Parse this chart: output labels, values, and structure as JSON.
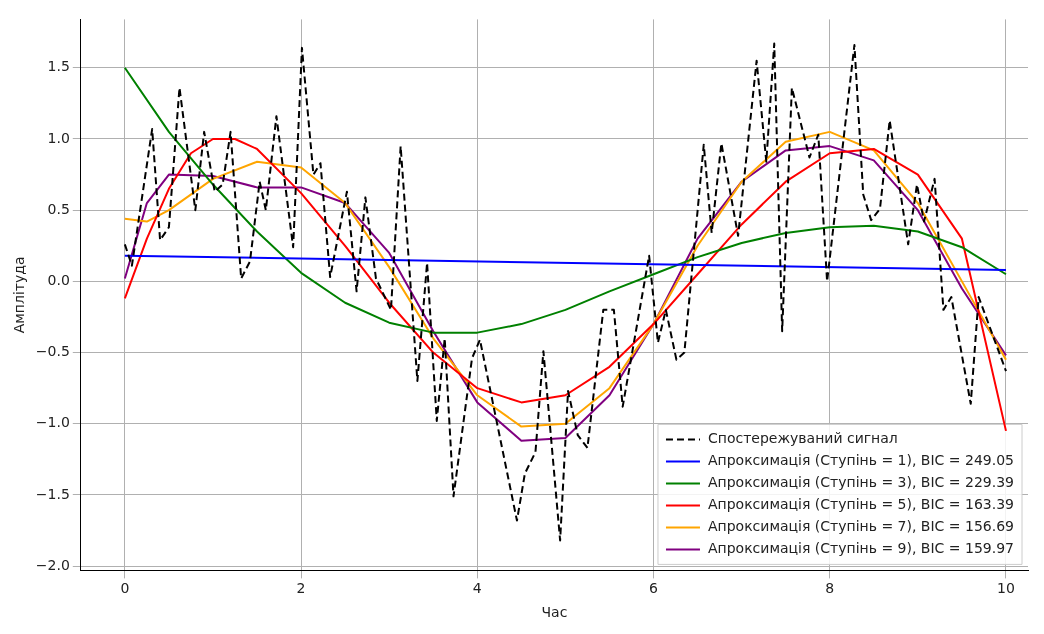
{
  "chart_data": {
    "type": "line",
    "xlabel": "Час",
    "ylabel": "Амплітуда",
    "xlim": [
      -0.5,
      10.25
    ],
    "ylim": [
      -2.03,
      1.84
    ],
    "xticks": [
      0,
      2,
      4,
      6,
      8,
      10
    ],
    "yticks": [
      {
        "value": -2,
        "label": "−2.0"
      },
      {
        "value": -1.5,
        "label": "−1.5"
      },
      {
        "value": -1,
        "label": "−1.0"
      },
      {
        "value": -0.5,
        "label": "−0.5"
      },
      {
        "value": 0,
        "label": "0.0"
      },
      {
        "value": 0.5,
        "label": "0.5"
      },
      {
        "value": 1,
        "label": "1.0"
      },
      {
        "value": 1.5,
        "label": "1.5"
      }
    ],
    "grid": true,
    "legend": "bottom right",
    "marker": "none",
    "series": [
      {
        "name": "Спостережуваний сигнал",
        "color": "#000000",
        "line_style": "dashed",
        "x": [
          0,
          0.08,
          0.31,
          0.4,
          0.5,
          0.62,
          0.8,
          0.9,
          1.02,
          1.11,
          1.2,
          1.32,
          1.42,
          1.53,
          1.6,
          1.72,
          1.91,
          2.01,
          2.14,
          2.22,
          2.33,
          2.52,
          2.63,
          2.73,
          2.85,
          3.02,
          3.13,
          3.32,
          3.43,
          3.54,
          3.63,
          3.73,
          3.94,
          4.03,
          4.45,
          4.54,
          4.66,
          4.75,
          4.94,
          5.03,
          5.14,
          5.25,
          5.43,
          5.55,
          5.65,
          5.95,
          6.05,
          6.14,
          6.26,
          6.35,
          6.57,
          6.66,
          6.77,
          6.96,
          7.17,
          7.28,
          7.37,
          7.46,
          7.57,
          7.77,
          7.87,
          7.97,
          8.28,
          8.38,
          8.47,
          8.57,
          8.68,
          8.89,
          8.99,
          9.07,
          9.19,
          9.29,
          9.38,
          9.6,
          9.69,
          10
        ],
        "values": [
          0.26,
          0.11,
          1.07,
          0.29,
          0.38,
          1.36,
          0.5,
          1.05,
          0.63,
          0.68,
          1.05,
          0.02,
          0.14,
          0.7,
          0.5,
          1.16,
          0.24,
          1.64,
          0.75,
          0.83,
          0.03,
          0.63,
          -0.07,
          0.59,
          0.02,
          -0.2,
          0.95,
          -0.7,
          0.13,
          -0.98,
          -0.4,
          -1.51,
          -0.54,
          -0.41,
          -1.68,
          -1.35,
          -1.2,
          -0.49,
          -1.82,
          -0.77,
          -1.08,
          -1.17,
          -0.2,
          -0.2,
          -0.88,
          0.18,
          -0.43,
          -0.2,
          -0.55,
          -0.5,
          0.96,
          0.34,
          0.97,
          0.32,
          1.55,
          0.84,
          1.67,
          -0.35,
          1.36,
          0.87,
          1.03,
          0,
          1.66,
          0.61,
          0.43,
          0.51,
          1.13,
          0.26,
          0.68,
          0.42,
          0.72,
          -0.2,
          -0.11,
          -0.86,
          -0.11,
          -0.63
        ]
      },
      {
        "name": "Апроксимація (Ступінь = 1), BIC = 249.05",
        "color": "#0000ff",
        "line_style": "solid",
        "x": [
          0,
          10
        ],
        "values": [
          0.18,
          0.08
        ]
      },
      {
        "name": "Апроксимація (Ступінь = 3), BIC = 229.39",
        "color": "#008000",
        "line_style": "solid",
        "x": [
          0,
          0.5,
          1,
          1.5,
          2,
          2.5,
          3,
          3.5,
          4,
          4.5,
          5,
          5.5,
          6,
          6.5,
          7,
          7.5,
          8,
          8.5,
          9,
          9.5,
          10
        ],
        "values": [
          1.5,
          1.05,
          0.68,
          0.35,
          0.06,
          -0.15,
          -0.29,
          -0.36,
          -0.36,
          -0.3,
          -0.2,
          -0.07,
          0.05,
          0.17,
          0.27,
          0.34,
          0.38,
          0.39,
          0.35,
          0.24,
          0.05
        ]
      },
      {
        "name": "Апроксимація (Ступінь = 5), BIC = 163.39",
        "color": "#ff0000",
        "line_style": "solid",
        "x": [
          0,
          0.25,
          0.5,
          0.75,
          1,
          1.25,
          1.5,
          2,
          2.5,
          3,
          3.5,
          4,
          4.5,
          5,
          5.5,
          6,
          6.5,
          7,
          7.5,
          8,
          8.5,
          9,
          9.5,
          10
        ],
        "values": [
          -0.12,
          0.3,
          0.65,
          0.9,
          1,
          1,
          0.93,
          0.62,
          0.25,
          -0.15,
          -0.5,
          -0.75,
          -0.85,
          -0.8,
          -0.6,
          -0.3,
          0.05,
          0.4,
          0.7,
          0.9,
          0.93,
          0.75,
          0.3,
          -1.05
        ]
      },
      {
        "name": "Апроксимація (Ступінь = 7), BIC = 156.69",
        "color": "#ffa500",
        "line_style": "solid",
        "x": [
          0,
          0.25,
          0.5,
          1,
          1.5,
          2,
          2.5,
          3,
          3.5,
          4,
          4.5,
          5,
          5.5,
          6,
          6.5,
          7,
          7.5,
          8,
          8.5,
          9,
          9.5,
          10
        ],
        "values": [
          0.44,
          0.42,
          0.5,
          0.72,
          0.84,
          0.8,
          0.55,
          0.1,
          -0.4,
          -0.8,
          -1.02,
          -1,
          -0.75,
          -0.3,
          0.25,
          0.7,
          0.98,
          1.05,
          0.92,
          0.55,
          0,
          -0.55
        ]
      },
      {
        "name": "Апроксимація (Ступінь = 9), BIC = 159.97",
        "color": "#800080",
        "line_style": "solid",
        "x": [
          0,
          0.25,
          0.5,
          1,
          1.5,
          2,
          2.5,
          3,
          3.5,
          4,
          4.5,
          5,
          5.5,
          6,
          6.5,
          7,
          7.5,
          8,
          8.5,
          9,
          9.5,
          10
        ],
        "values": [
          0.02,
          0.55,
          0.75,
          0.74,
          0.66,
          0.66,
          0.55,
          0.2,
          -0.35,
          -0.85,
          -1.12,
          -1.1,
          -0.8,
          -0.3,
          0.3,
          0.7,
          0.92,
          0.95,
          0.85,
          0.5,
          -0.05,
          -0.52
        ]
      }
    ]
  }
}
